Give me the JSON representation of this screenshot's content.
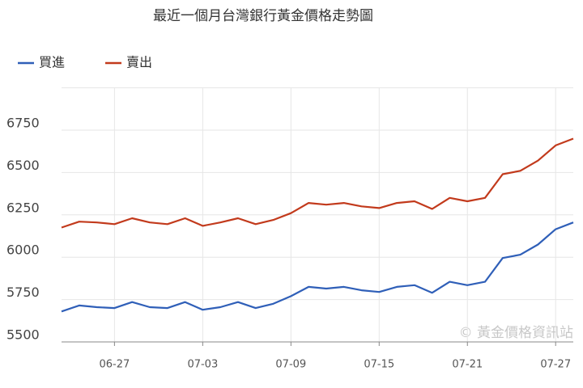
{
  "chart_data": {
    "type": "line",
    "title": "最近一個月台灣銀行黃金價格走勢圖",
    "watermark": "© 黃金價格資訊站",
    "categories": [
      null,
      null,
      null,
      "06-27",
      null,
      null,
      null,
      null,
      "07-03",
      null,
      null,
      null,
      null,
      "07-09",
      null,
      null,
      null,
      null,
      "07-15",
      null,
      null,
      null,
      null,
      "07-21",
      null,
      null,
      null,
      null,
      "07-27",
      null
    ],
    "series": [
      {
        "name": "買進",
        "color": "#2f5fb8",
        "values": [
          5680,
          5715,
          5705,
          5700,
          5735,
          5705,
          5700,
          5735,
          5690,
          5705,
          5735,
          5700,
          5725,
          5770,
          5825,
          5815,
          5825,
          5805,
          5795,
          5825,
          5835,
          5790,
          5855,
          5835,
          5855,
          5995,
          6015,
          6075,
          6165,
          6205
        ]
      },
      {
        "name": "賣出",
        "color": "#c23a1c",
        "values": [
          6175,
          6210,
          6205,
          6195,
          6230,
          6205,
          6195,
          6230,
          6185,
          6205,
          6230,
          6195,
          6220,
          6260,
          6320,
          6310,
          6320,
          6300,
          6290,
          6320,
          6330,
          6285,
          6350,
          6330,
          6350,
          6490,
          6510,
          6570,
          6660,
          6700
        ]
      }
    ],
    "ylim": [
      5500,
      7000
    ],
    "yticks": [
      5500,
      5750,
      6000,
      6250,
      6500,
      6750
    ],
    "grid": true,
    "legend": "top-left"
  }
}
